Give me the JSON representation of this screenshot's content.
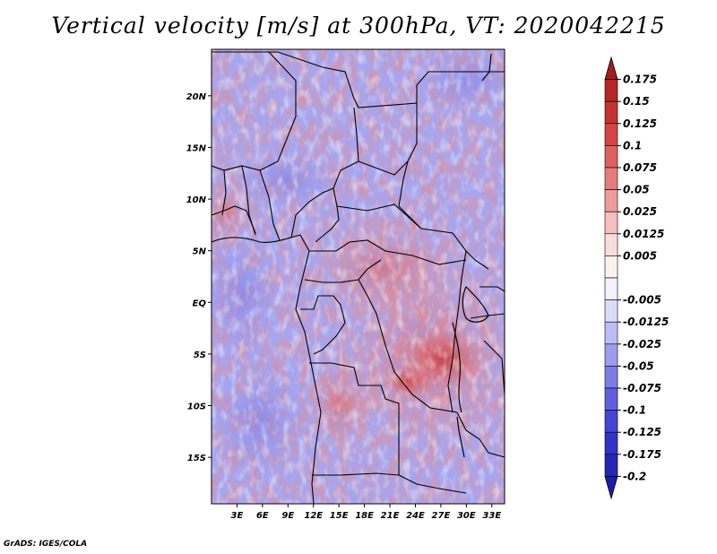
{
  "title": "Vertical velocity [m/s] at 300hPa, VT: 2020042215",
  "footer": "GrADS: IGES/COLA",
  "map": {
    "variable": "Vertical velocity",
    "units": "m/s",
    "level": "300hPa",
    "valid_time": "2020042215",
    "lat_range": [
      -19.5,
      24.5
    ],
    "lon_range": [
      0,
      34.5
    ],
    "lat_ticks": [
      {
        "value": 20,
        "label": "20N"
      },
      {
        "value": 15,
        "label": "15N"
      },
      {
        "value": 10,
        "label": "10N"
      },
      {
        "value": 5,
        "label": "5N"
      },
      {
        "value": 0,
        "label": "EQ"
      },
      {
        "value": -5,
        "label": "5S"
      },
      {
        "value": -10,
        "label": "10S"
      },
      {
        "value": -15,
        "label": "15S"
      }
    ],
    "lon_ticks": [
      {
        "value": 3,
        "label": "3E"
      },
      {
        "value": 6,
        "label": "6E"
      },
      {
        "value": 9,
        "label": "9E"
      },
      {
        "value": 12,
        "label": "12E"
      },
      {
        "value": 15,
        "label": "15E"
      },
      {
        "value": 18,
        "label": "18E"
      },
      {
        "value": 21,
        "label": "21E"
      },
      {
        "value": 24,
        "label": "24E"
      },
      {
        "value": 27,
        "label": "27E"
      },
      {
        "value": 30,
        "label": "30E"
      },
      {
        "value": 33,
        "label": "33E"
      }
    ]
  },
  "colorbar": {
    "levels": [
      {
        "label": "0.175",
        "color": "#a41d1d"
      },
      {
        "label": "0.15",
        "color": "#b52626"
      },
      {
        "label": "0.125",
        "color": "#c53232"
      },
      {
        "label": "0.1",
        "color": "#d44545"
      },
      {
        "label": "0.075",
        "color": "#de6060"
      },
      {
        "label": "0.05",
        "color": "#e67d7d"
      },
      {
        "label": "0.025",
        "color": "#ee9d9d"
      },
      {
        "label": "0.0125",
        "color": "#f5bdbd"
      },
      {
        "label": "0.005",
        "color": "#fadcdc"
      },
      {
        "label": "",
        "color": "#fbf1f1"
      },
      {
        "label": "-0.005",
        "color": "#f1f1fc"
      },
      {
        "label": "-0.0125",
        "color": "#dcdcfa"
      },
      {
        "label": "-0.025",
        "color": "#bdbdf5"
      },
      {
        "label": "-0.05",
        "color": "#9d9dee"
      },
      {
        "label": "-0.075",
        "color": "#7d7de6"
      },
      {
        "label": "-0.1",
        "color": "#6060de"
      },
      {
        "label": "-0.125",
        "color": "#4545d4"
      },
      {
        "label": "-0.175",
        "color": "#3232c5"
      },
      {
        "label": "-0.2",
        "color": "#2626b5"
      },
      {
        "label": "",
        "color": "#1d1da4"
      }
    ]
  }
}
